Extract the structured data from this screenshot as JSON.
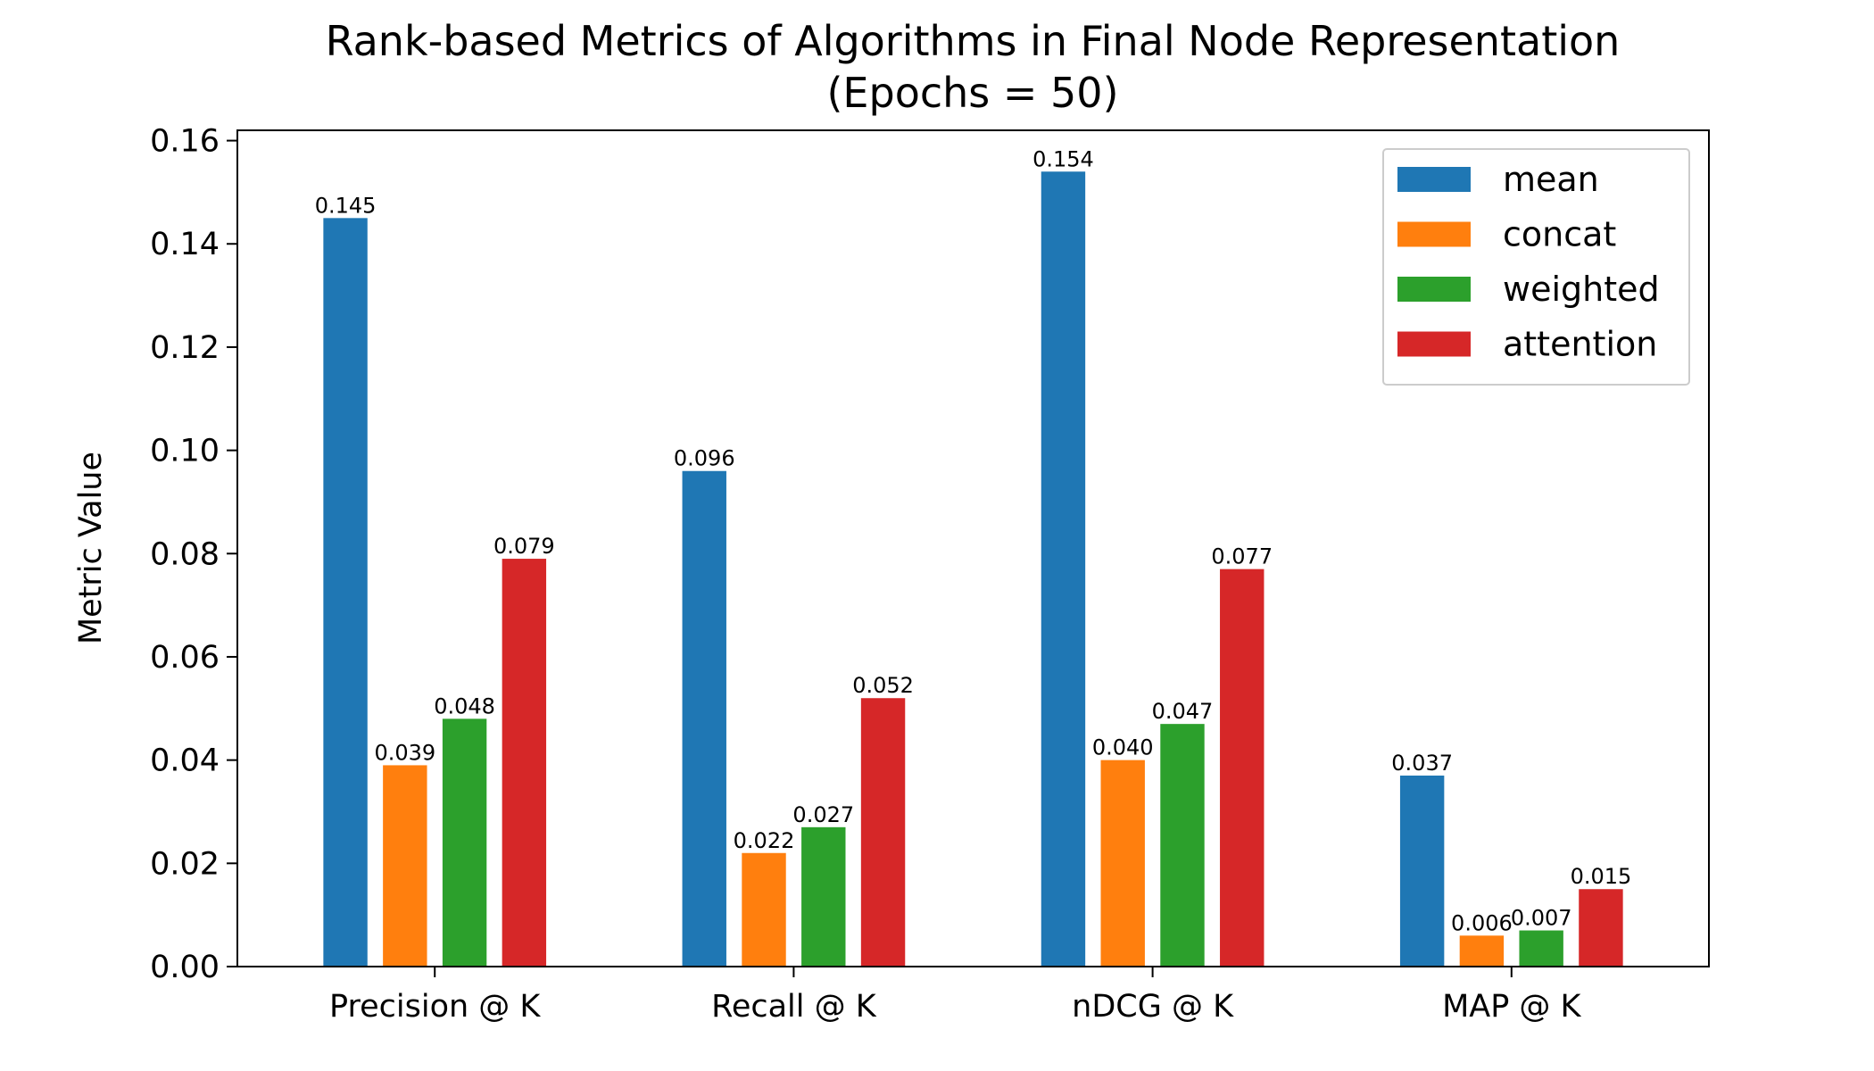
{
  "chart_data": {
    "type": "bar",
    "title": "Rank-based Metrics of Algorithms in Final Node Representation",
    "subtitle": "(Epochs = 50)",
    "xlabel": "",
    "ylabel": "Metric Value",
    "ylim": [
      0,
      0.162
    ],
    "yticks": [
      0.0,
      0.02,
      0.04,
      0.06,
      0.08,
      0.1,
      0.12,
      0.14,
      0.16
    ],
    "ytick_labels": [
      "0.00",
      "0.02",
      "0.04",
      "0.06",
      "0.08",
      "0.10",
      "0.12",
      "0.14",
      "0.16"
    ],
    "categories": [
      "Precision @ K",
      "Recall @ K",
      "nDCG @ K",
      "MAP @ K"
    ],
    "series": [
      {
        "name": "mean",
        "color": "#1f77b4",
        "values": [
          0.145,
          0.096,
          0.154,
          0.037
        ],
        "labels": [
          "0.145",
          "0.096",
          "0.154",
          "0.037"
        ]
      },
      {
        "name": "concat",
        "color": "#ff7f0e",
        "values": [
          0.039,
          0.022,
          0.04,
          0.006
        ],
        "labels": [
          "0.039",
          "0.022",
          "0.040",
          "0.006"
        ]
      },
      {
        "name": "weighted",
        "color": "#2ca02c",
        "values": [
          0.048,
          0.027,
          0.047,
          0.007
        ],
        "labels": [
          "0.048",
          "0.027",
          "0.047",
          "0.007"
        ]
      },
      {
        "name": "attention",
        "color": "#d62728",
        "values": [
          0.079,
          0.052,
          0.077,
          0.015
        ],
        "labels": [
          "0.079",
          "0.052",
          "0.077",
          "0.015"
        ]
      }
    ],
    "legend": "top-right",
    "grid": false
  }
}
